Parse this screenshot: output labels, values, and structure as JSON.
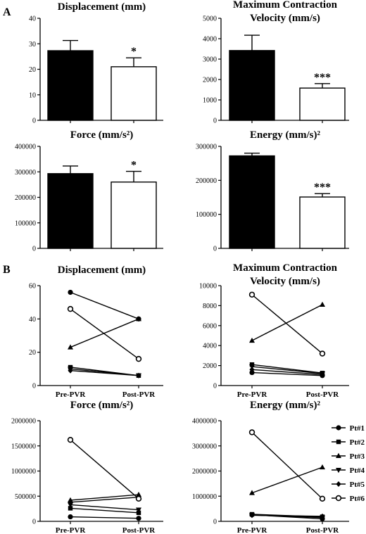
{
  "figure": {
    "section_labels": [
      "A",
      "B"
    ]
  },
  "chart_data": [
    {
      "id": "A1",
      "section": "A",
      "type": "bar",
      "title": [
        "Displacement (mm)"
      ],
      "categories": [
        "",
        ""
      ],
      "values": [
        27.3,
        21.0
      ],
      "errors": [
        4.0,
        3.5
      ],
      "fills": [
        "#000000",
        "#ffffff"
      ],
      "significance": [
        "",
        "*"
      ],
      "ylim": [
        0,
        40
      ],
      "yticks": [
        0,
        10,
        20,
        30,
        40
      ]
    },
    {
      "id": "A2",
      "section": "A",
      "type": "bar",
      "title": [
        "Maximum Contraction",
        "Velocity (mm/s)"
      ],
      "categories": [
        "",
        ""
      ],
      "values": [
        3420,
        1580
      ],
      "errors": [
        750,
        220
      ],
      "fills": [
        "#000000",
        "#ffffff"
      ],
      "significance": [
        "",
        "***"
      ],
      "ylim": [
        0,
        5000
      ],
      "yticks": [
        0,
        1000,
        2000,
        3000,
        4000,
        5000
      ]
    },
    {
      "id": "A3",
      "section": "A",
      "type": "bar",
      "title": [
        "Force (mm/s²)"
      ],
      "categories": [
        "",
        ""
      ],
      "values": [
        293000,
        260000
      ],
      "errors": [
        30000,
        42000
      ],
      "fills": [
        "#000000",
        "#ffffff"
      ],
      "significance": [
        "",
        "*"
      ],
      "ylim": [
        0,
        400000
      ],
      "yticks": [
        0,
        100000,
        200000,
        300000,
        400000
      ]
    },
    {
      "id": "A4",
      "section": "A",
      "type": "bar",
      "title": [
        "Energy (mm/s)²"
      ],
      "categories": [
        "",
        ""
      ],
      "values": [
        272000,
        151000
      ],
      "errors": [
        8000,
        10000
      ],
      "fills": [
        "#000000",
        "#ffffff"
      ],
      "significance": [
        "",
        "***"
      ],
      "ylim": [
        0,
        300000
      ],
      "yticks": [
        0,
        100000,
        200000,
        300000
      ]
    },
    {
      "id": "B1",
      "section": "B",
      "type": "line",
      "title": [
        "Displacement (mm)"
      ],
      "x": [
        "Pre-PVR",
        "Post-PVR"
      ],
      "ylim": [
        0,
        60
      ],
      "yticks": [
        0,
        20,
        40,
        60
      ],
      "series": [
        {
          "name": "Pt#1",
          "marker": "circle",
          "values": [
            56,
            40
          ]
        },
        {
          "name": "Pt#2",
          "marker": "square",
          "values": [
            11,
            6
          ]
        },
        {
          "name": "Pt#3",
          "marker": "triangle-up",
          "values": [
            23,
            40
          ]
        },
        {
          "name": "Pt#4",
          "marker": "triangle-down",
          "values": [
            10,
            6
          ]
        },
        {
          "name": "Pt#5",
          "marker": "diamond",
          "values": [
            9,
            6
          ]
        },
        {
          "name": "Pt#6",
          "marker": "open-circle",
          "values": [
            46,
            16
          ]
        }
      ]
    },
    {
      "id": "B2",
      "section": "B",
      "type": "line",
      "title": [
        "Maximum Contraction",
        "Velocity (mm/s)"
      ],
      "x": [
        "Pre-PVR",
        "Post-PVR"
      ],
      "ylim": [
        0,
        10000
      ],
      "yticks": [
        0,
        2000,
        4000,
        6000,
        8000,
        10000
      ],
      "series": [
        {
          "name": "Pt#1",
          "marker": "circle",
          "values": [
            1300,
            1000
          ]
        },
        {
          "name": "Pt#2",
          "marker": "square",
          "values": [
            2100,
            1250
          ]
        },
        {
          "name": "Pt#3",
          "marker": "triangle-up",
          "values": [
            4500,
            8100
          ]
        },
        {
          "name": "Pt#4",
          "marker": "triangle-down",
          "values": [
            1900,
            1200
          ]
        },
        {
          "name": "Pt#5",
          "marker": "diamond",
          "values": [
            1600,
            1100
          ]
        },
        {
          "name": "Pt#6",
          "marker": "open-circle",
          "values": [
            9100,
            3200
          ]
        }
      ]
    },
    {
      "id": "B3",
      "section": "B",
      "type": "line",
      "title": [
        "Force (mm/s²)"
      ],
      "x": [
        "Pre-PVR",
        "Post-PVR"
      ],
      "ylim": [
        0,
        2000000
      ],
      "yticks": [
        0,
        500000,
        1000000,
        1500000,
        2000000
      ],
      "series": [
        {
          "name": "Pt#1",
          "marker": "circle",
          "values": [
            90000,
            60000
          ]
        },
        {
          "name": "Pt#2",
          "marker": "square",
          "values": [
            260000,
            170000
          ]
        },
        {
          "name": "Pt#3",
          "marker": "triangle-up",
          "values": [
            420000,
            530000
          ]
        },
        {
          "name": "Pt#4",
          "marker": "triangle-down",
          "values": [
            330000,
            230000
          ]
        },
        {
          "name": "Pt#5",
          "marker": "diamond",
          "values": [
            380000,
            480000
          ]
        },
        {
          "name": "Pt#6",
          "marker": "open-circle",
          "values": [
            1620000,
            450000
          ]
        }
      ]
    },
    {
      "id": "B4",
      "section": "B",
      "type": "line",
      "title": [
        "Energy (mm/s)²"
      ],
      "x": [
        "Pre-PVR",
        "Post-PVR"
      ],
      "ylim": [
        0,
        4000000
      ],
      "yticks": [
        0,
        1000000,
        2000000,
        3000000,
        4000000
      ],
      "legend": "right",
      "series": [
        {
          "name": "Pt#1",
          "marker": "circle",
          "values": [
            260000,
            100000
          ]
        },
        {
          "name": "Pt#2",
          "marker": "square",
          "values": [
            280000,
            180000
          ]
        },
        {
          "name": "Pt#3",
          "marker": "triangle-up",
          "values": [
            1130000,
            2150000
          ]
        },
        {
          "name": "Pt#4",
          "marker": "triangle-down",
          "values": [
            250000,
            150000
          ]
        },
        {
          "name": "Pt#5",
          "marker": "diamond",
          "values": [
            240000,
            200000
          ]
        },
        {
          "name": "Pt#6",
          "marker": "open-circle",
          "values": [
            3540000,
            900000
          ]
        }
      ]
    }
  ]
}
